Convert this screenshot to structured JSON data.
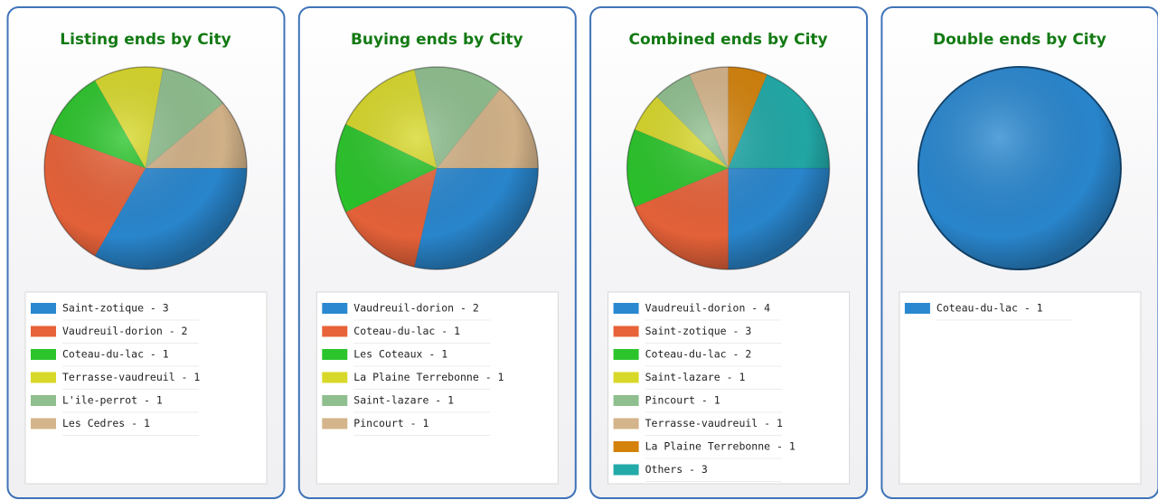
{
  "chart_data": [
    {
      "type": "pie",
      "title": "Listing ends by City",
      "labels": [
        "Saint-zotique - 3",
        "Vaudreuil-dorion - 2",
        "Coteau-du-lac - 1",
        "Terrasse-vaudreuil - 1",
        "L'ile-perrot - 1",
        "Les Cedres - 1"
      ],
      "values": [
        3,
        2,
        1,
        1,
        1,
        1
      ],
      "colors": [
        "#2a88d0",
        "#e8633a",
        "#2bc52b",
        "#d8d82a",
        "#8fbf8f",
        "#d4b48a"
      ]
    },
    {
      "type": "pie",
      "title": "Buying ends by City",
      "labels": [
        "Vaudreuil-dorion - 2",
        "Coteau-du-lac - 1",
        "Les Coteaux - 1",
        "La Plaine Terrebonne - 1",
        "Saint-lazare - 1",
        "Pincourt - 1"
      ],
      "values": [
        2,
        1,
        1,
        1,
        1,
        1
      ],
      "colors": [
        "#2a88d0",
        "#e8633a",
        "#2bc52b",
        "#d8d82a",
        "#8fbf8f",
        "#d4b48a"
      ]
    },
    {
      "type": "pie",
      "title": "Combined ends by City",
      "labels": [
        "Vaudreuil-dorion - 4",
        "Saint-zotique - 3",
        "Coteau-du-lac - 2",
        "Saint-lazare - 1",
        "Pincourt - 1",
        "Terrasse-vaudreuil - 1",
        "La Plaine Terrebonne - 1",
        "Others - 3"
      ],
      "values": [
        4,
        3,
        2,
        1,
        1,
        1,
        1,
        3
      ],
      "colors": [
        "#2a88d0",
        "#e8633a",
        "#2bc52b",
        "#d8d82a",
        "#8fbf8f",
        "#d4b48a",
        "#d4820a",
        "#22aaa8"
      ]
    },
    {
      "type": "pie",
      "title": "Double ends by City",
      "labels": [
        "Coteau-du-lac - 1"
      ],
      "values": [
        1
      ],
      "colors": [
        "#2a88d0"
      ]
    }
  ]
}
